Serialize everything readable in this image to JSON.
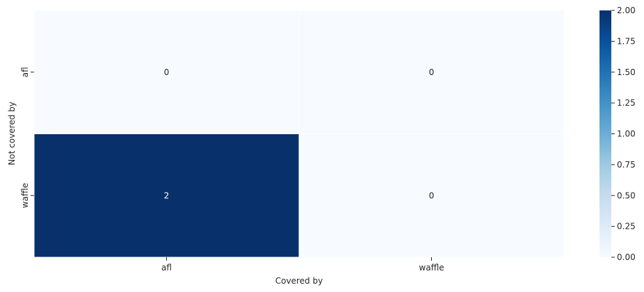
{
  "chart_data": {
    "type": "heatmap",
    "x_categories": [
      "afl",
      "waffle"
    ],
    "y_categories": [
      "afl",
      "waffle"
    ],
    "values": [
      [
        0,
        0
      ],
      [
        2,
        0
      ]
    ],
    "annotations": [
      [
        "0",
        "0"
      ],
      [
        "2",
        "0"
      ]
    ],
    "xlabel": "Covered by",
    "ylabel": "Not covered by",
    "colormap": "Blues",
    "colorbar": {
      "min": 0,
      "max": 2,
      "ticks": [
        "0.00",
        "0.25",
        "0.50",
        "0.75",
        "1.00",
        "1.25",
        "1.50",
        "1.75",
        "2.00"
      ]
    },
    "colors": {
      "low": "#f7fbff",
      "high": "#08306b",
      "annotation_dark": "#262626",
      "annotation_light": "#ffffff"
    }
  }
}
